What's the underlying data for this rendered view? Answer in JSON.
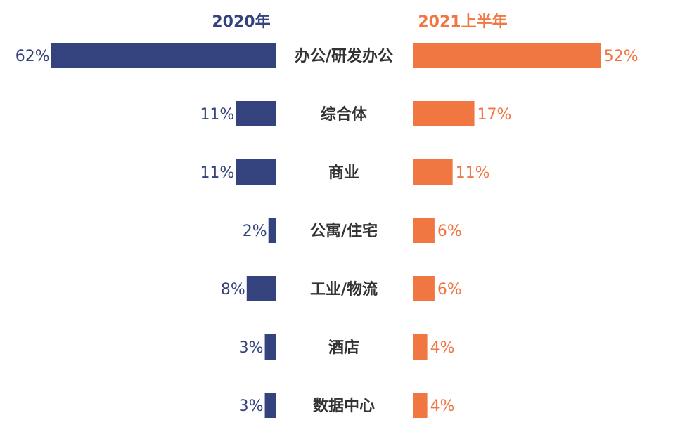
{
  "chart_data": {
    "type": "bar",
    "orientation": "horizontal-butterfly",
    "categories": [
      "办公/研发办公",
      "综合体",
      "商业",
      "公寓/住宅",
      "工业/物流",
      "酒店",
      "数据中心"
    ],
    "series": [
      {
        "name": "2020年",
        "values": [
          62,
          11,
          11,
          2,
          8,
          3,
          3
        ],
        "labels": [
          "62%",
          "11%",
          "11%",
          "2%",
          "8%",
          "3%",
          "3%"
        ],
        "color": "#34427d"
      },
      {
        "name": "2021上半年",
        "values": [
          52,
          17,
          11,
          6,
          6,
          4,
          4
        ],
        "labels": [
          "52%",
          "17%",
          "11%",
          "6%",
          "6%",
          "4%",
          "4%"
        ],
        "color": "#f07642"
      }
    ],
    "value_unit": "%",
    "grid": false,
    "legend": "series names as column headers above each side"
  }
}
